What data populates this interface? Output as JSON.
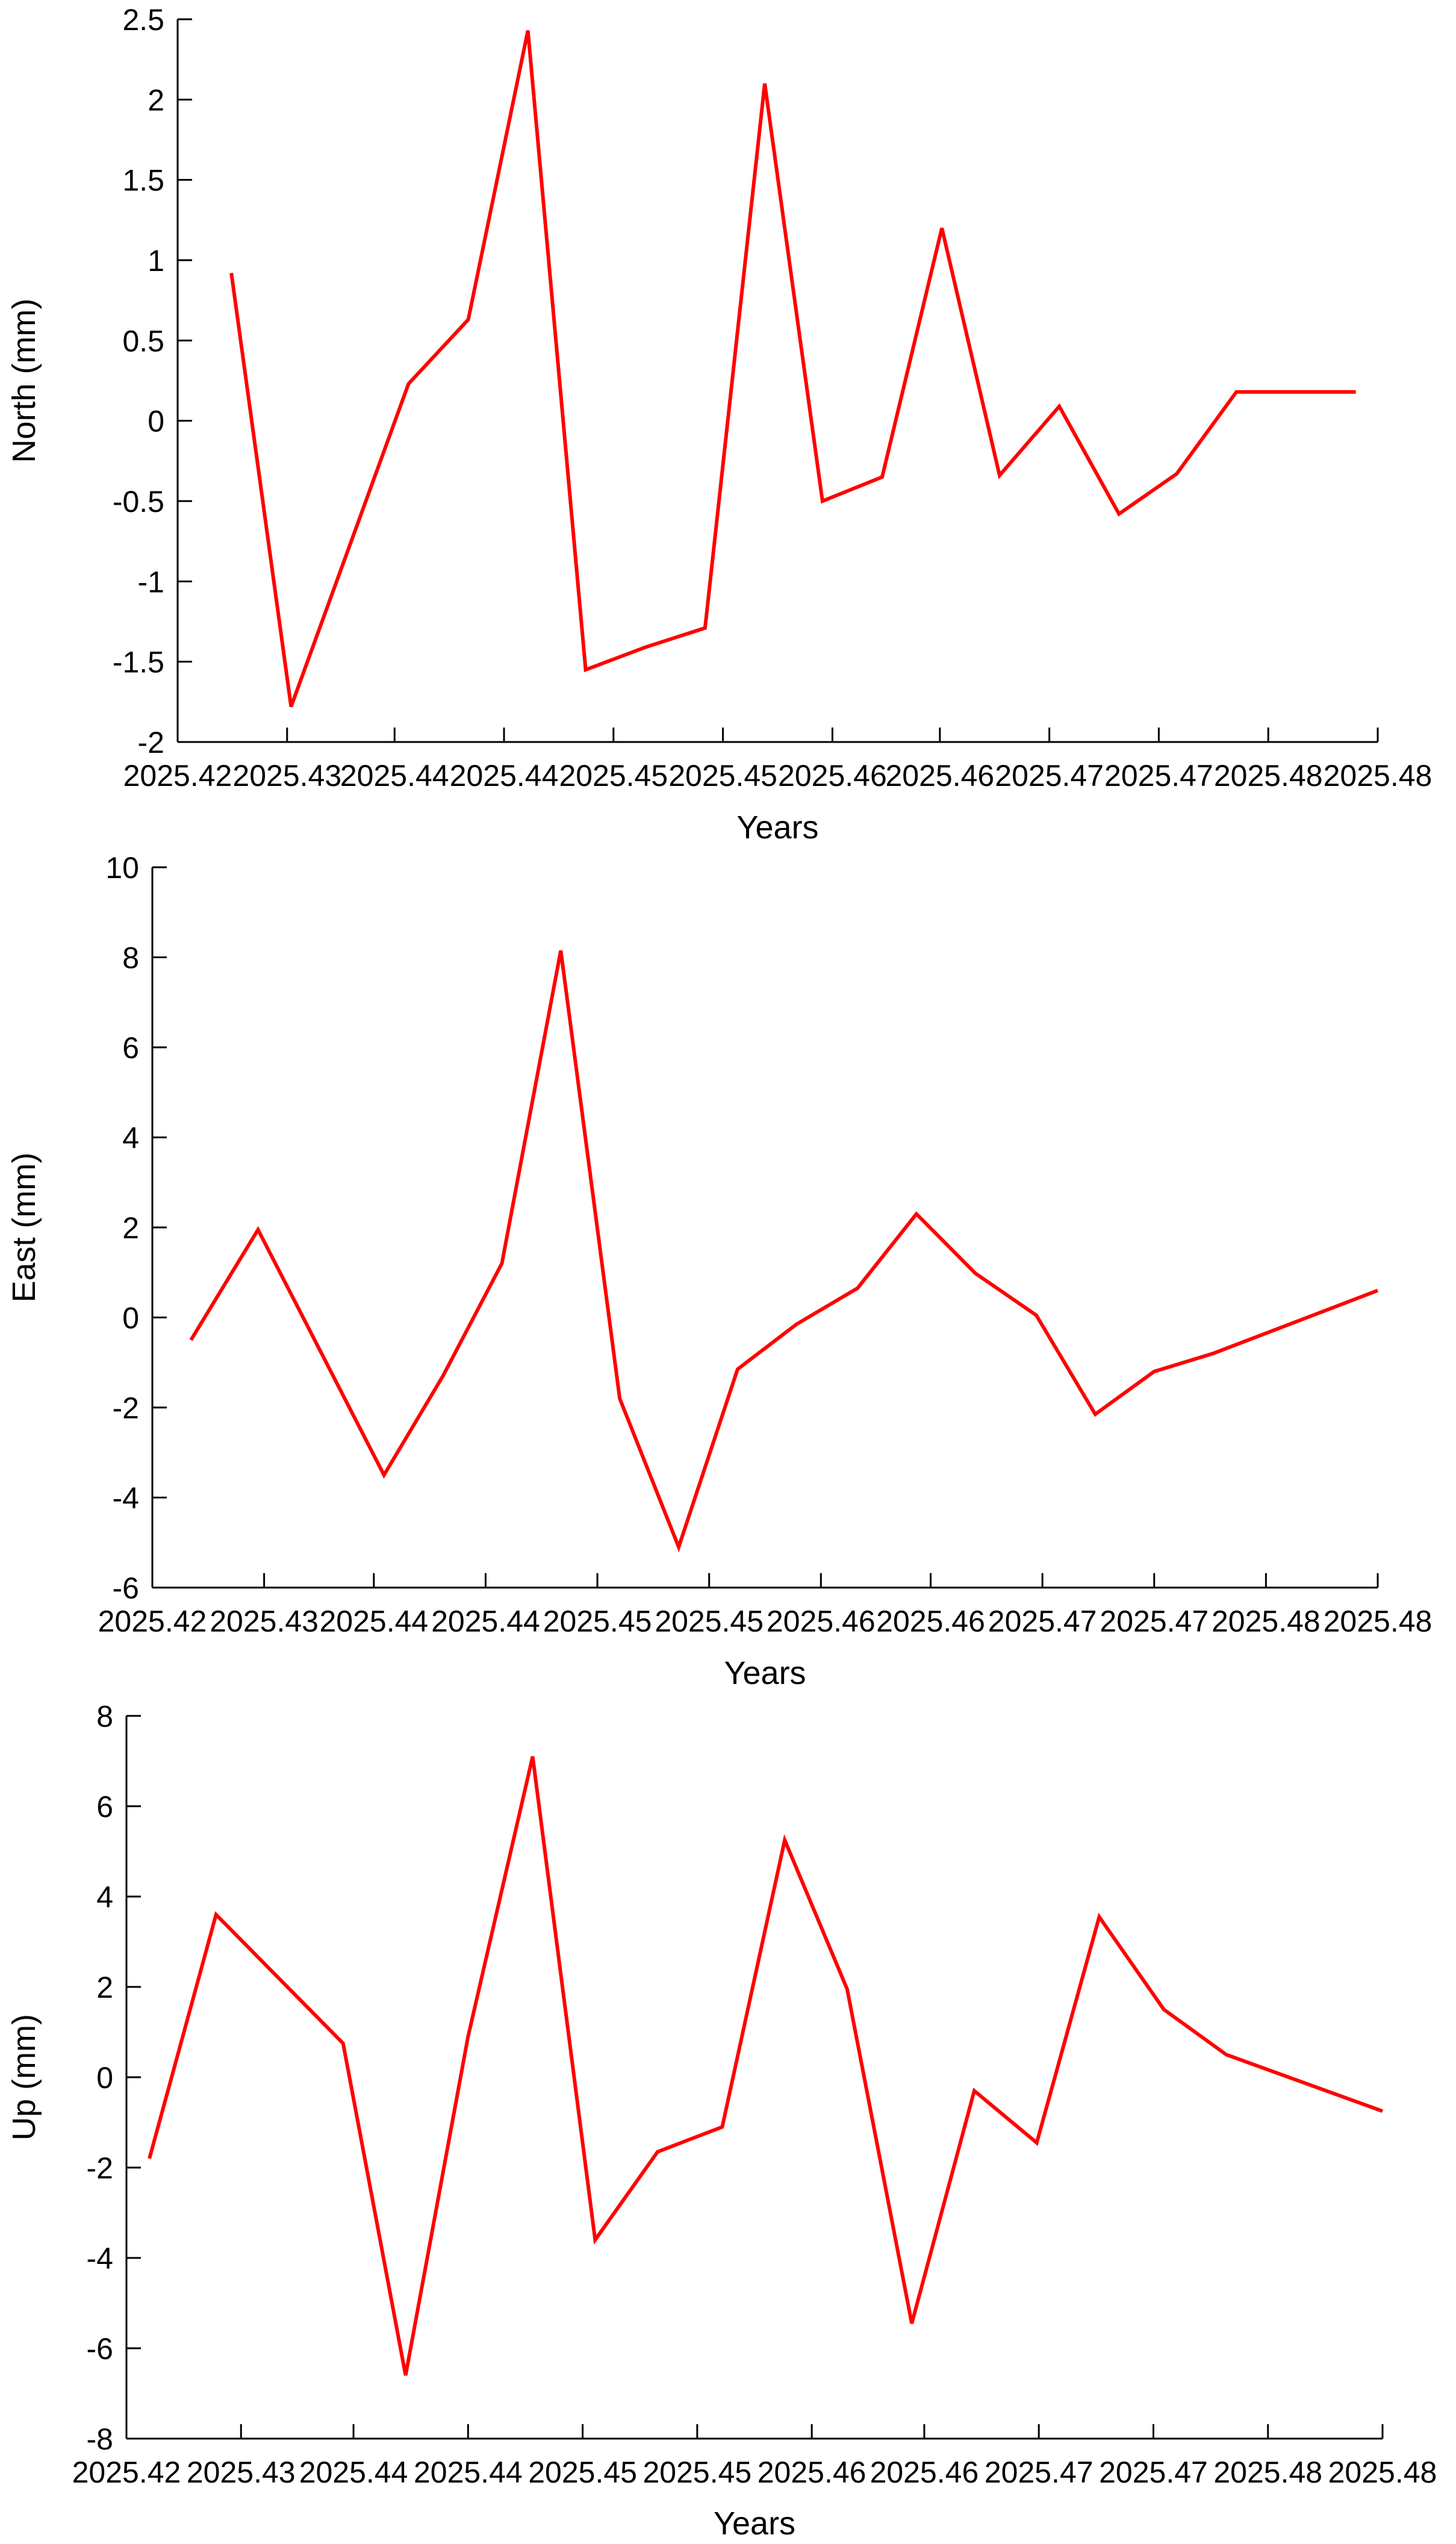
{
  "chart_data": [
    {
      "type": "line",
      "title": "",
      "xlabel": "Years",
      "ylabel": "North (mm)",
      "ylim": [
        -2,
        2.5
      ],
      "yticks": [
        -2,
        -1.5,
        -1,
        -0.5,
        0,
        0.5,
        1,
        1.5,
        2,
        2.5
      ],
      "ytick_labels": [
        "-2",
        "-1.5",
        "-1",
        "-0.5",
        "0",
        "0.5",
        "1",
        "1.5",
        "2",
        "2.5"
      ],
      "xlim": [
        2025.4192,
        2025.4795
      ],
      "xticks": [
        2025.4192,
        2025.4247,
        2025.4301,
        2025.4356,
        2025.4411,
        2025.4466,
        2025.4521,
        2025.4575,
        2025.463,
        2025.4685,
        2025.474,
        2025.4795
      ],
      "xtick_labels": [
        "2025.42",
        "2025.43",
        "2025.44",
        "2025.44",
        "2025.45",
        "2025.45",
        "2025.46",
        "2025.46",
        "2025.47",
        "2025.47",
        "2025.48",
        "2025.48"
      ],
      "grid": false,
      "color": "#ff0000",
      "series": [
        {
          "x": [
            2025.4219,
            2025.4249,
            2025.4308,
            2025.4338,
            2025.4368,
            2025.4397,
            2025.4427,
            2025.4457,
            2025.4487,
            2025.4516,
            2025.4546,
            2025.4576,
            2025.4605,
            2025.4635,
            2025.4665,
            2025.4694,
            2025.4724,
            2025.4784
          ],
          "values": [
            0.92,
            -1.78,
            0.23,
            0.63,
            2.43,
            -1.55,
            -1.41,
            -1.29,
            2.1,
            -0.5,
            -0.35,
            1.2,
            -0.34,
            0.09,
            -0.58,
            -0.33,
            0.18,
            0.18
          ]
        }
      ]
    },
    {
      "type": "line",
      "title": "",
      "xlabel": "Years",
      "ylabel": "East (mm)",
      "ylim": [
        -6,
        10
      ],
      "yticks": [
        -6,
        -4,
        -2,
        0,
        2,
        4,
        6,
        8,
        10
      ],
      "ytick_labels": [
        "-6",
        "-4",
        "-2",
        "0",
        "2",
        "4",
        "6",
        "8",
        "10"
      ],
      "xlim": [
        2025.4192,
        2025.4795
      ],
      "xticks": [
        2025.4192,
        2025.4247,
        2025.4301,
        2025.4356,
        2025.4411,
        2025.4466,
        2025.4521,
        2025.4575,
        2025.463,
        2025.4685,
        2025.474,
        2025.4795
      ],
      "xtick_labels": [
        "2025.42",
        "2025.43",
        "2025.44",
        "2025.44",
        "2025.45",
        "2025.45",
        "2025.46",
        "2025.46",
        "2025.47",
        "2025.47",
        "2025.48",
        "2025.48"
      ],
      "grid": false,
      "color": "#ff0000",
      "series": [
        {
          "x": [
            2025.4211,
            2025.4244,
            2025.4306,
            2025.4335,
            2025.4364,
            2025.4393,
            2025.4422,
            2025.4451,
            2025.448,
            2025.4509,
            2025.4539,
            2025.4568,
            2025.4597,
            2025.4627,
            2025.4656,
            2025.4685,
            2025.4714,
            2025.4795
          ],
          "values": [
            -0.5,
            1.95,
            -3.5,
            -1.3,
            1.2,
            8.15,
            -1.8,
            -5.1,
            -1.15,
            -0.15,
            0.65,
            2.3,
            0.98,
            0.05,
            -2.15,
            -1.2,
            -0.8,
            0.6
          ]
        }
      ]
    },
    {
      "type": "line",
      "title": "",
      "xlabel": "Years",
      "ylabel": "Up (mm)",
      "ylim": [
        -8,
        8
      ],
      "yticks": [
        -8,
        -6,
        -4,
        -2,
        0,
        2,
        4,
        6,
        8
      ],
      "ytick_labels": [
        "-8",
        "-6",
        "-4",
        "-2",
        "0",
        "2",
        "4",
        "6",
        "8"
      ],
      "xlim": [
        2025.4192,
        2025.4795
      ],
      "xticks": [
        2025.4192,
        2025.4247,
        2025.4301,
        2025.4356,
        2025.4411,
        2025.4466,
        2025.4521,
        2025.4575,
        2025.463,
        2025.4685,
        2025.474,
        2025.4795
      ],
      "xtick_labels": [
        "2025.42",
        "2025.43",
        "2025.44",
        "2025.44",
        "2025.45",
        "2025.45",
        "2025.46",
        "2025.46",
        "2025.47",
        "2025.47",
        "2025.48",
        "2025.48"
      ],
      "grid": false,
      "color": "#ff0000",
      "series": [
        {
          "x": [
            2025.4203,
            2025.4235,
            2025.4296,
            2025.4326,
            2025.4356,
            2025.4387,
            2025.4417,
            2025.4447,
            2025.4478,
            2025.4508,
            2025.4538,
            2025.4569,
            2025.4599,
            2025.4629,
            2025.4659,
            2025.469,
            2025.472,
            2025.4795
          ],
          "values": [
            -1.8,
            3.6,
            0.75,
            -6.6,
            0.9,
            7.1,
            -3.6,
            -1.65,
            -1.1,
            5.25,
            1.95,
            -5.45,
            -0.3,
            -1.45,
            3.55,
            1.5,
            0.5,
            -0.75
          ]
        }
      ]
    }
  ]
}
